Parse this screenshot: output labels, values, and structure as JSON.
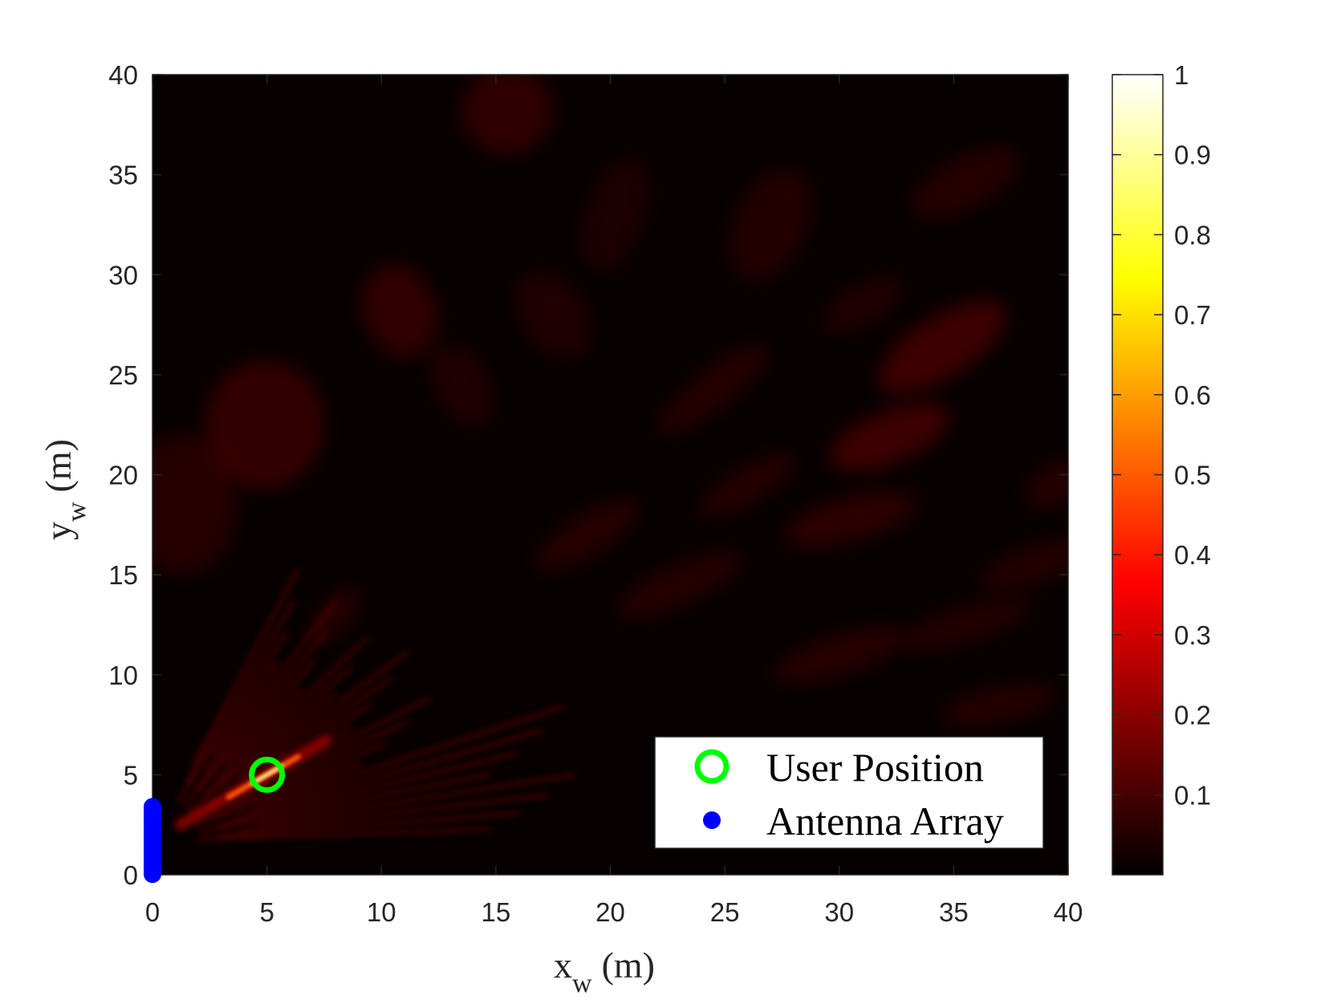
{
  "chart_data": {
    "type": "heatmap",
    "title": "",
    "x_axis": {
      "label_main": "x",
      "label_sub": "w",
      "label_unit": "(m)",
      "range": [
        0,
        40
      ],
      "ticks": [
        0,
        5,
        10,
        15,
        20,
        25,
        30,
        35,
        40
      ]
    },
    "y_axis": {
      "label_main": "y",
      "label_sub": "w",
      "label_unit": "(m)",
      "range": [
        0,
        40
      ],
      "ticks": [
        0,
        5,
        10,
        15,
        20,
        25,
        30,
        35,
        40
      ]
    },
    "colorbar": {
      "range": [
        0,
        1
      ],
      "ticks": [
        0.1,
        0.2,
        0.3,
        0.4,
        0.5,
        0.6,
        0.7,
        0.8,
        0.9,
        1
      ],
      "colormap": "hot"
    },
    "peak": {
      "x": 5,
      "y": 5,
      "value": 1.0
    },
    "user_position": {
      "x": 5,
      "y": 5,
      "label": "User Position",
      "color": "#00ff00"
    },
    "antenna_array": {
      "x": 0,
      "y_from": 0,
      "y_to": 3.4,
      "label": "Antenna Array",
      "color": "#0000ff"
    },
    "legend": {
      "placement": "bottom-right",
      "entries": [
        "User Position",
        "Antenna Array"
      ]
    },
    "grid": false
  }
}
